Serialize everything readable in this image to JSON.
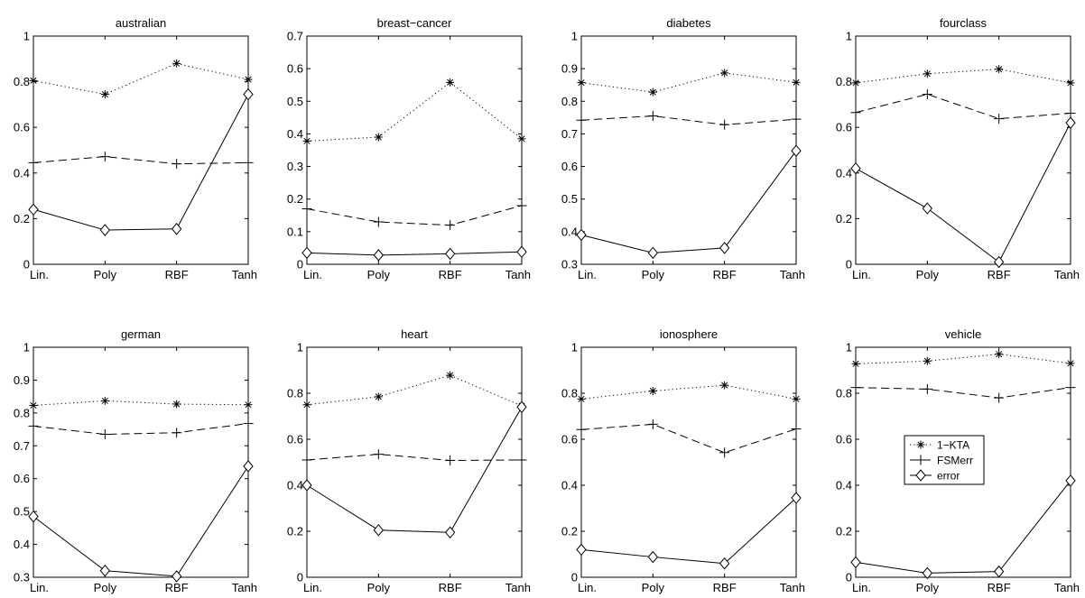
{
  "figure": {
    "legend": {
      "entries": [
        {
          "label": "1−KTA",
          "series": "kta"
        },
        {
          "label": "FSMerr",
          "series": "fsm"
        },
        {
          "label": "error",
          "series": "err"
        }
      ],
      "placement": "panel vehicle, right-middle"
    }
  },
  "chart_data": [
    {
      "type": "line",
      "title": "australian",
      "categories": [
        "Lin.",
        "Poly",
        "RBF",
        "Tanh"
      ],
      "ylim": [
        0,
        1
      ],
      "yticks": [
        "0",
        "0.2",
        "0.4",
        "0.6",
        "0.8",
        "1"
      ],
      "series": [
        {
          "name": "1−KTA",
          "key": "kta",
          "values": [
            0.805,
            0.745,
            0.88,
            0.81
          ]
        },
        {
          "name": "FSMerr",
          "key": "fsm",
          "values": [
            0.445,
            0.472,
            0.44,
            0.445
          ]
        },
        {
          "name": "error",
          "key": "err",
          "values": [
            0.24,
            0.15,
            0.155,
            0.745
          ]
        }
      ]
    },
    {
      "type": "line",
      "title": "breast−cancer",
      "categories": [
        "Lin.",
        "Poly",
        "RBF",
        "Tanh"
      ],
      "ylim": [
        0,
        0.7
      ],
      "yticks": [
        "0",
        "0.1",
        "0.2",
        "0.3",
        "0.4",
        "0.5",
        "0.6",
        "0.7"
      ],
      "series": [
        {
          "name": "1−KTA",
          "key": "kta",
          "values": [
            0.378,
            0.39,
            0.558,
            0.385
          ]
        },
        {
          "name": "FSMerr",
          "key": "fsm",
          "values": [
            0.17,
            0.13,
            0.12,
            0.18
          ]
        },
        {
          "name": "error",
          "key": "err",
          "values": [
            0.035,
            0.028,
            0.032,
            0.038
          ]
        }
      ]
    },
    {
      "type": "line",
      "title": "diabetes",
      "categories": [
        "Lin.",
        "Poly",
        "RBF",
        "Tanh"
      ],
      "ylim": [
        0.3,
        1
      ],
      "yticks": [
        "0.3",
        "0.4",
        "0.5",
        "0.6",
        "0.7",
        "0.8",
        "0.9",
        "1"
      ],
      "series": [
        {
          "name": "1−KTA",
          "key": "kta",
          "values": [
            0.857,
            0.828,
            0.887,
            0.858
          ]
        },
        {
          "name": "FSMerr",
          "key": "fsm",
          "values": [
            0.742,
            0.755,
            0.728,
            0.745
          ]
        },
        {
          "name": "error",
          "key": "err",
          "values": [
            0.39,
            0.335,
            0.35,
            0.648
          ]
        }
      ]
    },
    {
      "type": "line",
      "title": "fourclass",
      "categories": [
        "Lin.",
        "Poly",
        "RBF",
        "Tanh"
      ],
      "ylim": [
        0,
        1
      ],
      "yticks": [
        "0",
        "0.2",
        "0.4",
        "0.6",
        "0.8",
        "1"
      ],
      "series": [
        {
          "name": "1−KTA",
          "key": "kta",
          "values": [
            0.795,
            0.835,
            0.855,
            0.795
          ]
        },
        {
          "name": "FSMerr",
          "key": "fsm",
          "values": [
            0.665,
            0.745,
            0.638,
            0.662
          ]
        },
        {
          "name": "error",
          "key": "err",
          "values": [
            0.42,
            0.245,
            0.01,
            0.62
          ]
        }
      ]
    },
    {
      "type": "line",
      "title": "german",
      "categories": [
        "Lin.",
        "Poly",
        "RBF",
        "Tanh"
      ],
      "ylim": [
        0.3,
        1
      ],
      "yticks": [
        "0.3",
        "0.4",
        "0.5",
        "0.6",
        "0.7",
        "0.8",
        "0.9",
        "1"
      ],
      "series": [
        {
          "name": "1−KTA",
          "key": "kta",
          "values": [
            0.823,
            0.837,
            0.827,
            0.825
          ]
        },
        {
          "name": "FSMerr",
          "key": "fsm",
          "values": [
            0.76,
            0.735,
            0.74,
            0.768
          ]
        },
        {
          "name": "error",
          "key": "err",
          "values": [
            0.485,
            0.32,
            0.303,
            0.638
          ]
        }
      ]
    },
    {
      "type": "line",
      "title": "heart",
      "categories": [
        "Lin.",
        "Poly",
        "RBF",
        "Tanh"
      ],
      "ylim": [
        0,
        1
      ],
      "yticks": [
        "0",
        "0.2",
        "0.4",
        "0.6",
        "0.8",
        "1"
      ],
      "series": [
        {
          "name": "1−KTA",
          "key": "kta",
          "values": [
            0.75,
            0.785,
            0.878,
            0.745
          ]
        },
        {
          "name": "FSMerr",
          "key": "fsm",
          "values": [
            0.51,
            0.535,
            0.508,
            0.51
          ]
        },
        {
          "name": "error",
          "key": "err",
          "values": [
            0.4,
            0.205,
            0.195,
            0.74
          ]
        }
      ]
    },
    {
      "type": "line",
      "title": "ionosphere",
      "categories": [
        "Lin.",
        "Poly",
        "RBF",
        "Tanh"
      ],
      "ylim": [
        0,
        1
      ],
      "yticks": [
        "0",
        "0.2",
        "0.4",
        "0.6",
        "0.8",
        "1"
      ],
      "series": [
        {
          "name": "1−KTA",
          "key": "kta",
          "values": [
            0.775,
            0.81,
            0.835,
            0.775
          ]
        },
        {
          "name": "FSMerr",
          "key": "fsm",
          "values": [
            0.642,
            0.665,
            0.542,
            0.645
          ]
        },
        {
          "name": "error",
          "key": "err",
          "values": [
            0.12,
            0.088,
            0.06,
            0.345
          ]
        }
      ]
    },
    {
      "type": "line",
      "title": "vehicle",
      "categories": [
        "Lin.",
        "Poly",
        "RBF",
        "Tanh"
      ],
      "ylim": [
        0,
        1
      ],
      "yticks": [
        "0",
        "0.2",
        "0.4",
        "0.6",
        "0.8",
        "1"
      ],
      "series": [
        {
          "name": "1−KTA",
          "key": "kta",
          "values": [
            0.928,
            0.94,
            0.97,
            0.93
          ]
        },
        {
          "name": "FSMerr",
          "key": "fsm",
          "values": [
            0.825,
            0.818,
            0.78,
            0.825
          ]
        },
        {
          "name": "error",
          "key": "err",
          "values": [
            0.065,
            0.018,
            0.025,
            0.42
          ]
        }
      ],
      "legend": true
    }
  ]
}
